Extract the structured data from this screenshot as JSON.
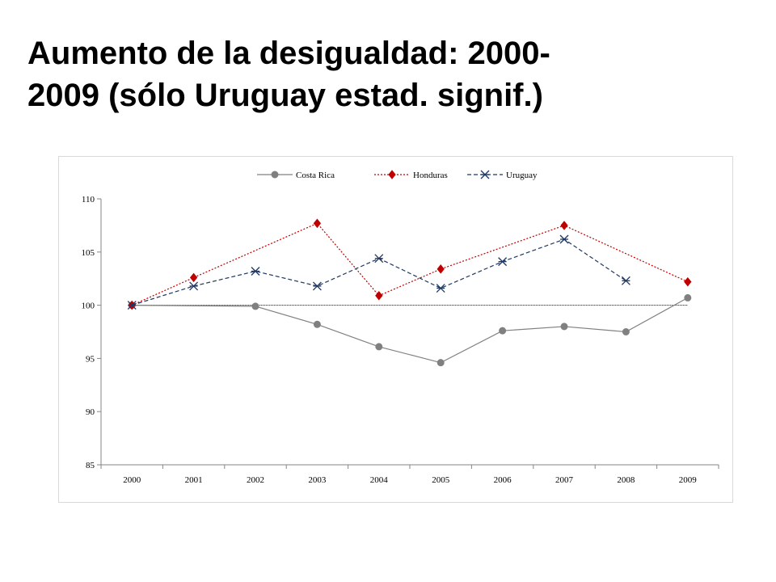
{
  "slide": {
    "title_line1": "Aumento de la desigualdad: 2000-",
    "title_line2": "2009 (sólo Uruguay estad. signif.)"
  },
  "chart_data": {
    "type": "line",
    "title": "",
    "xlabel": "",
    "ylabel": "",
    "categories": [
      "2000",
      "2001",
      "2002",
      "2003",
      "2004",
      "2005",
      "2006",
      "2007",
      "2008",
      "2009"
    ],
    "ylim": [
      85,
      110
    ],
    "yticks": [
      85,
      90,
      95,
      100,
      105,
      110
    ],
    "grid": false,
    "legend_position": "top",
    "reference_line": 100,
    "series": [
      {
        "name": "Costa Rica",
        "color": "#808080",
        "marker": "circle",
        "dash": "solid",
        "values": [
          100,
          null,
          99.9,
          98.2,
          96.1,
          94.6,
          97.6,
          98.0,
          97.5,
          100.7
        ]
      },
      {
        "name": "Honduras",
        "color": "#c00000",
        "marker": "diamond",
        "dash": "dotted",
        "values": [
          100,
          102.6,
          null,
          107.7,
          100.9,
          103.4,
          null,
          107.5,
          null,
          102.2
        ]
      },
      {
        "name": "Uruguay",
        "color": "#1f3864",
        "marker": "asterisk",
        "dash": "dashed",
        "values": [
          100,
          101.8,
          103.2,
          101.8,
          104.4,
          101.6,
          104.1,
          106.2,
          102.3,
          null
        ]
      }
    ]
  }
}
